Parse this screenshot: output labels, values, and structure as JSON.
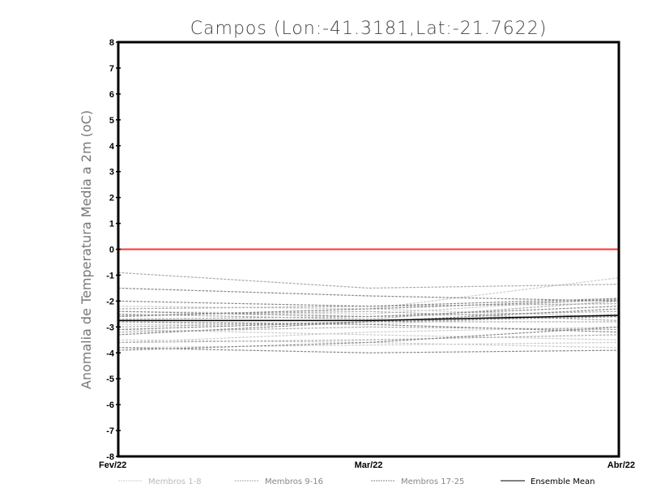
{
  "chart_data": {
    "type": "line",
    "title": "Campos (Lon:-41.3181,Lat:-21.7622)",
    "ylabel": "Anomalia de Temperatura Media a 2m (oC)",
    "xlabel": "",
    "categories": [
      "Fev/22",
      "Mar/22",
      "Abr/22"
    ],
    "ylim": [
      -8,
      8
    ],
    "yticks": [
      8,
      7,
      6,
      5,
      4,
      3,
      2,
      1,
      0,
      -1,
      -2,
      -3,
      -4,
      -5,
      -6,
      -7,
      -8
    ],
    "reference_line": {
      "value": 0,
      "color": "#ff3333"
    },
    "groups": [
      {
        "name": "Membros 1-8",
        "color": "#cccccc",
        "dash": true,
        "series": [
          [
            -2.6,
            -2.3,
            -1.1
          ],
          [
            -3.5,
            -3.6,
            -3.8
          ],
          [
            -2.9,
            -2.9,
            -2.5
          ],
          [
            -3.1,
            -3.3,
            -3.5
          ],
          [
            -2.4,
            -2.5,
            -1.9
          ],
          [
            -3.6,
            -3.2,
            -3.0
          ],
          [
            -2.2,
            -2.3,
            -2.6
          ],
          [
            -3.8,
            -3.7,
            -3.6
          ]
        ]
      },
      {
        "name": "Membros 9-16",
        "color": "#aaaaaa",
        "dash": true,
        "series": [
          [
            -0.9,
            -1.5,
            -1.35
          ],
          [
            -2.5,
            -2.7,
            -2.0
          ],
          [
            -3.0,
            -2.8,
            -2.8
          ],
          [
            -2.3,
            -2.2,
            -2.1
          ],
          [
            -3.2,
            -3.0,
            -3.1
          ],
          [
            -2.7,
            -2.6,
            -2.4
          ],
          [
            -3.6,
            -3.5,
            -3.3
          ],
          [
            -2.55,
            -2.4,
            -2.75
          ]
        ]
      },
      {
        "name": "Membros 17-25",
        "color": "#888888",
        "dash": true,
        "series": [
          [
            -1.5,
            -1.8,
            -2.0
          ],
          [
            -2.0,
            -2.2,
            -1.9
          ],
          [
            -2.4,
            -2.6,
            -2.2
          ],
          [
            -2.8,
            -2.9,
            -3.2
          ],
          [
            -3.1,
            -2.8,
            -2.6
          ],
          [
            -3.8,
            -4.0,
            -3.9
          ],
          [
            -3.3,
            -2.8,
            -2.3
          ],
          [
            -2.6,
            -2.3,
            -1.95
          ],
          [
            -3.9,
            -3.6,
            -3.0
          ]
        ]
      }
    ],
    "ensemble_mean": {
      "name": "Ensemble Mean",
      "color": "#000000",
      "values": [
        -2.75,
        -2.75,
        -2.55
      ]
    },
    "legend_position": "bottom",
    "grid": false
  }
}
